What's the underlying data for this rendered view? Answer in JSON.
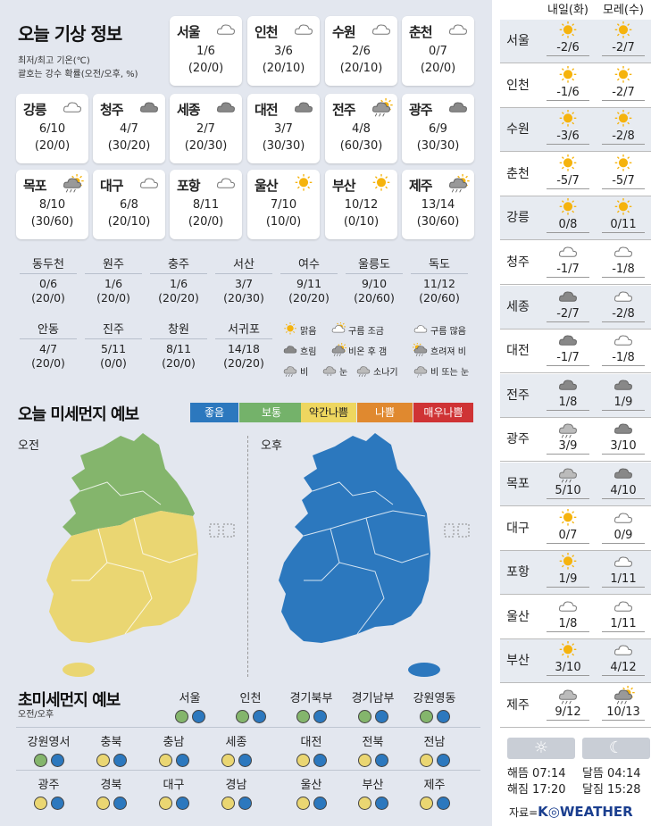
{
  "title": "오늘 기상 정보",
  "note_line1": "최저/최고 기온(℃)",
  "note_line2": "괄호는 강수 확률(오전/오후, %)",
  "cities": [
    {
      "name": "서울",
      "icon": "cloudy-icon",
      "temp": "1/6",
      "prob": "(20/0)"
    },
    {
      "name": "인천",
      "icon": "cloudy-icon",
      "temp": "3/6",
      "prob": "(20/10)"
    },
    {
      "name": "수원",
      "icon": "cloudy-icon",
      "temp": "2/6",
      "prob": "(20/10)"
    },
    {
      "name": "춘천",
      "icon": "cloudy-icon",
      "temp": "0/7",
      "prob": "(20/0)"
    },
    {
      "name": "강릉",
      "icon": "cloudy-icon",
      "temp": "6/10",
      "prob": "(20/0)"
    },
    {
      "name": "청주",
      "icon": "overcast-icon",
      "temp": "4/7",
      "prob": "(30/20)"
    },
    {
      "name": "세종",
      "icon": "overcast-icon",
      "temp": "2/7",
      "prob": "(20/30)"
    },
    {
      "name": "대전",
      "icon": "overcast-icon",
      "temp": "3/7",
      "prob": "(30/30)"
    },
    {
      "name": "전주",
      "icon": "rain-then-clear-icon",
      "temp": "4/8",
      "prob": "(60/30)"
    },
    {
      "name": "광주",
      "icon": "overcast-icon",
      "temp": "6/9",
      "prob": "(30/30)"
    },
    {
      "name": "목포",
      "icon": "rain-then-clear-icon",
      "temp": "8/10",
      "prob": "(30/60)"
    },
    {
      "name": "대구",
      "icon": "cloudy-icon",
      "temp": "6/8",
      "prob": "(20/10)"
    },
    {
      "name": "포항",
      "icon": "cloudy-icon",
      "temp": "8/11",
      "prob": "(20/0)"
    },
    {
      "name": "울산",
      "icon": "sunny-icon",
      "temp": "7/10",
      "prob": "(10/0)"
    },
    {
      "name": "부산",
      "icon": "sunny-icon",
      "temp": "10/12",
      "prob": "(0/10)"
    },
    {
      "name": "제주",
      "icon": "rain-then-clear-icon",
      "temp": "13/14",
      "prob": "(30/60)"
    }
  ],
  "small_cities": [
    {
      "name": "동두천",
      "temp": "0/6",
      "prob": "(20/0)"
    },
    {
      "name": "원주",
      "temp": "1/6",
      "prob": "(20/0)"
    },
    {
      "name": "충주",
      "temp": "1/6",
      "prob": "(20/20)"
    },
    {
      "name": "서산",
      "temp": "3/7",
      "prob": "(20/30)"
    },
    {
      "name": "여수",
      "temp": "9/11",
      "prob": "(20/20)"
    },
    {
      "name": "울릉도",
      "temp": "9/10",
      "prob": "(20/60)"
    },
    {
      "name": "독도",
      "temp": "11/12",
      "prob": "(20/60)"
    },
    {
      "name": "안동",
      "temp": "4/7",
      "prob": "(20/0)"
    },
    {
      "name": "진주",
      "temp": "5/11",
      "prob": "(0/0)"
    },
    {
      "name": "창원",
      "temp": "8/11",
      "prob": "(20/0)"
    },
    {
      "name": "서귀포",
      "temp": "14/18",
      "prob": "(20/20)"
    }
  ],
  "legend": [
    {
      "icon": "sunny-icon",
      "label": "맑음"
    },
    {
      "icon": "partly-cloudy-icon",
      "label": "구름 조금"
    },
    {
      "icon": "mostly-cloudy-icon",
      "label": "구름 많음"
    },
    {
      "icon": "overcast-icon",
      "label": "흐림"
    },
    {
      "icon": "rain-then-clear-icon",
      "label": "비온 후 갬"
    },
    {
      "icon": "clouding-rain-icon",
      "label": "흐려져 비"
    },
    {
      "icon": "rain-icon",
      "label": "비"
    },
    {
      "icon": "snow-icon",
      "label": "눈"
    },
    {
      "icon": "shower-icon",
      "label": "소나기"
    },
    {
      "icon": "rain-or-snow-icon",
      "label": "비 또는 눈"
    }
  ],
  "dust_title": "오늘 미세먼지 예보",
  "levels": [
    {
      "label": "좋음",
      "color": "#2c78be"
    },
    {
      "label": "보통",
      "color": "#74b26a"
    },
    {
      "label": "약간나쁨",
      "color": "#eed65f"
    },
    {
      "label": "나쁨",
      "color": "#e0892f"
    },
    {
      "label": "매우나쁨",
      "color": "#cf3335"
    }
  ],
  "am_label": "오전",
  "pm_label": "오후",
  "map_colors": {
    "am_north": "#84b56c",
    "am_south": "#ead672",
    "pm": "#2c78be"
  },
  "ultra_title": "초미세먼지 예보",
  "ultra_sub": "오전/오후",
  "ultra_cities": [
    {
      "name": "서울",
      "am": "#84b56c",
      "pm": "#2c78be"
    },
    {
      "name": "인천",
      "am": "#84b56c",
      "pm": "#2c78be"
    },
    {
      "name": "경기북부",
      "am": "#84b56c",
      "pm": "#2c78be"
    },
    {
      "name": "경기남부",
      "am": "#84b56c",
      "pm": "#2c78be"
    },
    {
      "name": "강원영동",
      "am": "#84b56c",
      "pm": "#2c78be"
    },
    {
      "name": "강원영서",
      "am": "#84b56c",
      "pm": "#2c78be"
    },
    {
      "name": "충북",
      "am": "#ead672",
      "pm": "#2c78be"
    },
    {
      "name": "충남",
      "am": "#ead672",
      "pm": "#2c78be"
    },
    {
      "name": "세종",
      "am": "#ead672",
      "pm": "#2c78be"
    },
    {
      "name": "대전",
      "am": "#ead672",
      "pm": "#2c78be"
    },
    {
      "name": "전북",
      "am": "#ead672",
      "pm": "#2c78be"
    },
    {
      "name": "전남",
      "am": "#ead672",
      "pm": "#2c78be"
    },
    {
      "name": "광주",
      "am": "#ead672",
      "pm": "#2c78be"
    },
    {
      "name": "경북",
      "am": "#ead672",
      "pm": "#2c78be"
    },
    {
      "name": "대구",
      "am": "#ead672",
      "pm": "#2c78be"
    },
    {
      "name": "경남",
      "am": "#ead672",
      "pm": "#2c78be"
    },
    {
      "name": "울산",
      "am": "#ead672",
      "pm": "#2c78be"
    },
    {
      "name": "부산",
      "am": "#ead672",
      "pm": "#2c78be"
    },
    {
      "name": "제주",
      "am": "#ead672",
      "pm": "#2c78be"
    }
  ],
  "forecast_headers": [
    "내일(화)",
    "모레(수)"
  ],
  "forecast": [
    {
      "name": "서울",
      "d1": {
        "icon": "sunny-icon",
        "temp": "-2/6"
      },
      "d2": {
        "icon": "sunny-icon",
        "temp": "-2/7"
      }
    },
    {
      "name": "인천",
      "d1": {
        "icon": "sunny-icon",
        "temp": "-1/6"
      },
      "d2": {
        "icon": "sunny-icon",
        "temp": "-2/7"
      }
    },
    {
      "name": "수원",
      "d1": {
        "icon": "sunny-icon",
        "temp": "-3/6"
      },
      "d2": {
        "icon": "sunny-icon",
        "temp": "-2/8"
      }
    },
    {
      "name": "춘천",
      "d1": {
        "icon": "sunny-icon",
        "temp": "-5/7"
      },
      "d2": {
        "icon": "sunny-icon",
        "temp": "-5/7"
      }
    },
    {
      "name": "강릉",
      "d1": {
        "icon": "sunny-icon",
        "temp": "0/8"
      },
      "d2": {
        "icon": "sunny-icon",
        "temp": "0/11"
      }
    },
    {
      "name": "청주",
      "d1": {
        "icon": "mostly-cloudy-icon",
        "temp": "-1/7"
      },
      "d2": {
        "icon": "mostly-cloudy-icon",
        "temp": "-1/8"
      }
    },
    {
      "name": "세종",
      "d1": {
        "icon": "overcast-icon",
        "temp": "-2/7"
      },
      "d2": {
        "icon": "mostly-cloudy-icon",
        "temp": "-2/8"
      }
    },
    {
      "name": "대전",
      "d1": {
        "icon": "overcast-icon",
        "temp": "-1/7"
      },
      "d2": {
        "icon": "mostly-cloudy-icon",
        "temp": "-1/8"
      }
    },
    {
      "name": "전주",
      "d1": {
        "icon": "overcast-icon",
        "temp": "1/8"
      },
      "d2": {
        "icon": "overcast-icon",
        "temp": "1/9"
      }
    },
    {
      "name": "광주",
      "d1": {
        "icon": "rain-icon",
        "temp": "3/9"
      },
      "d2": {
        "icon": "overcast-icon",
        "temp": "3/10"
      }
    },
    {
      "name": "목포",
      "d1": {
        "icon": "rain-icon",
        "temp": "5/10"
      },
      "d2": {
        "icon": "overcast-icon",
        "temp": "4/10"
      }
    },
    {
      "name": "대구",
      "d1": {
        "icon": "sunny-icon",
        "temp": "0/7"
      },
      "d2": {
        "icon": "mostly-cloudy-icon",
        "temp": "0/9"
      }
    },
    {
      "name": "포항",
      "d1": {
        "icon": "sunny-icon",
        "temp": "1/9"
      },
      "d2": {
        "icon": "mostly-cloudy-icon",
        "temp": "1/11"
      }
    },
    {
      "name": "울산",
      "d1": {
        "icon": "mostly-cloudy-icon",
        "temp": "1/8"
      },
      "d2": {
        "icon": "mostly-cloudy-icon",
        "temp": "1/11"
      }
    },
    {
      "name": "부산",
      "d1": {
        "icon": "sunny-icon",
        "temp": "3/10"
      },
      "d2": {
        "icon": "mostly-cloudy-icon",
        "temp": "4/12"
      }
    },
    {
      "name": "제주",
      "d1": {
        "icon": "rain-icon",
        "temp": "9/12"
      },
      "d2": {
        "icon": "rain-then-clear-icon",
        "temp": "10/13"
      }
    }
  ],
  "sun": {
    "rise": "해뜸 07:14",
    "set": "해짐 17:20"
  },
  "moon": {
    "rise": "달뜸 04:14",
    "set": "달짐 15:28"
  },
  "source_label": "자료=",
  "source_brand": "K◎WEATHER"
}
